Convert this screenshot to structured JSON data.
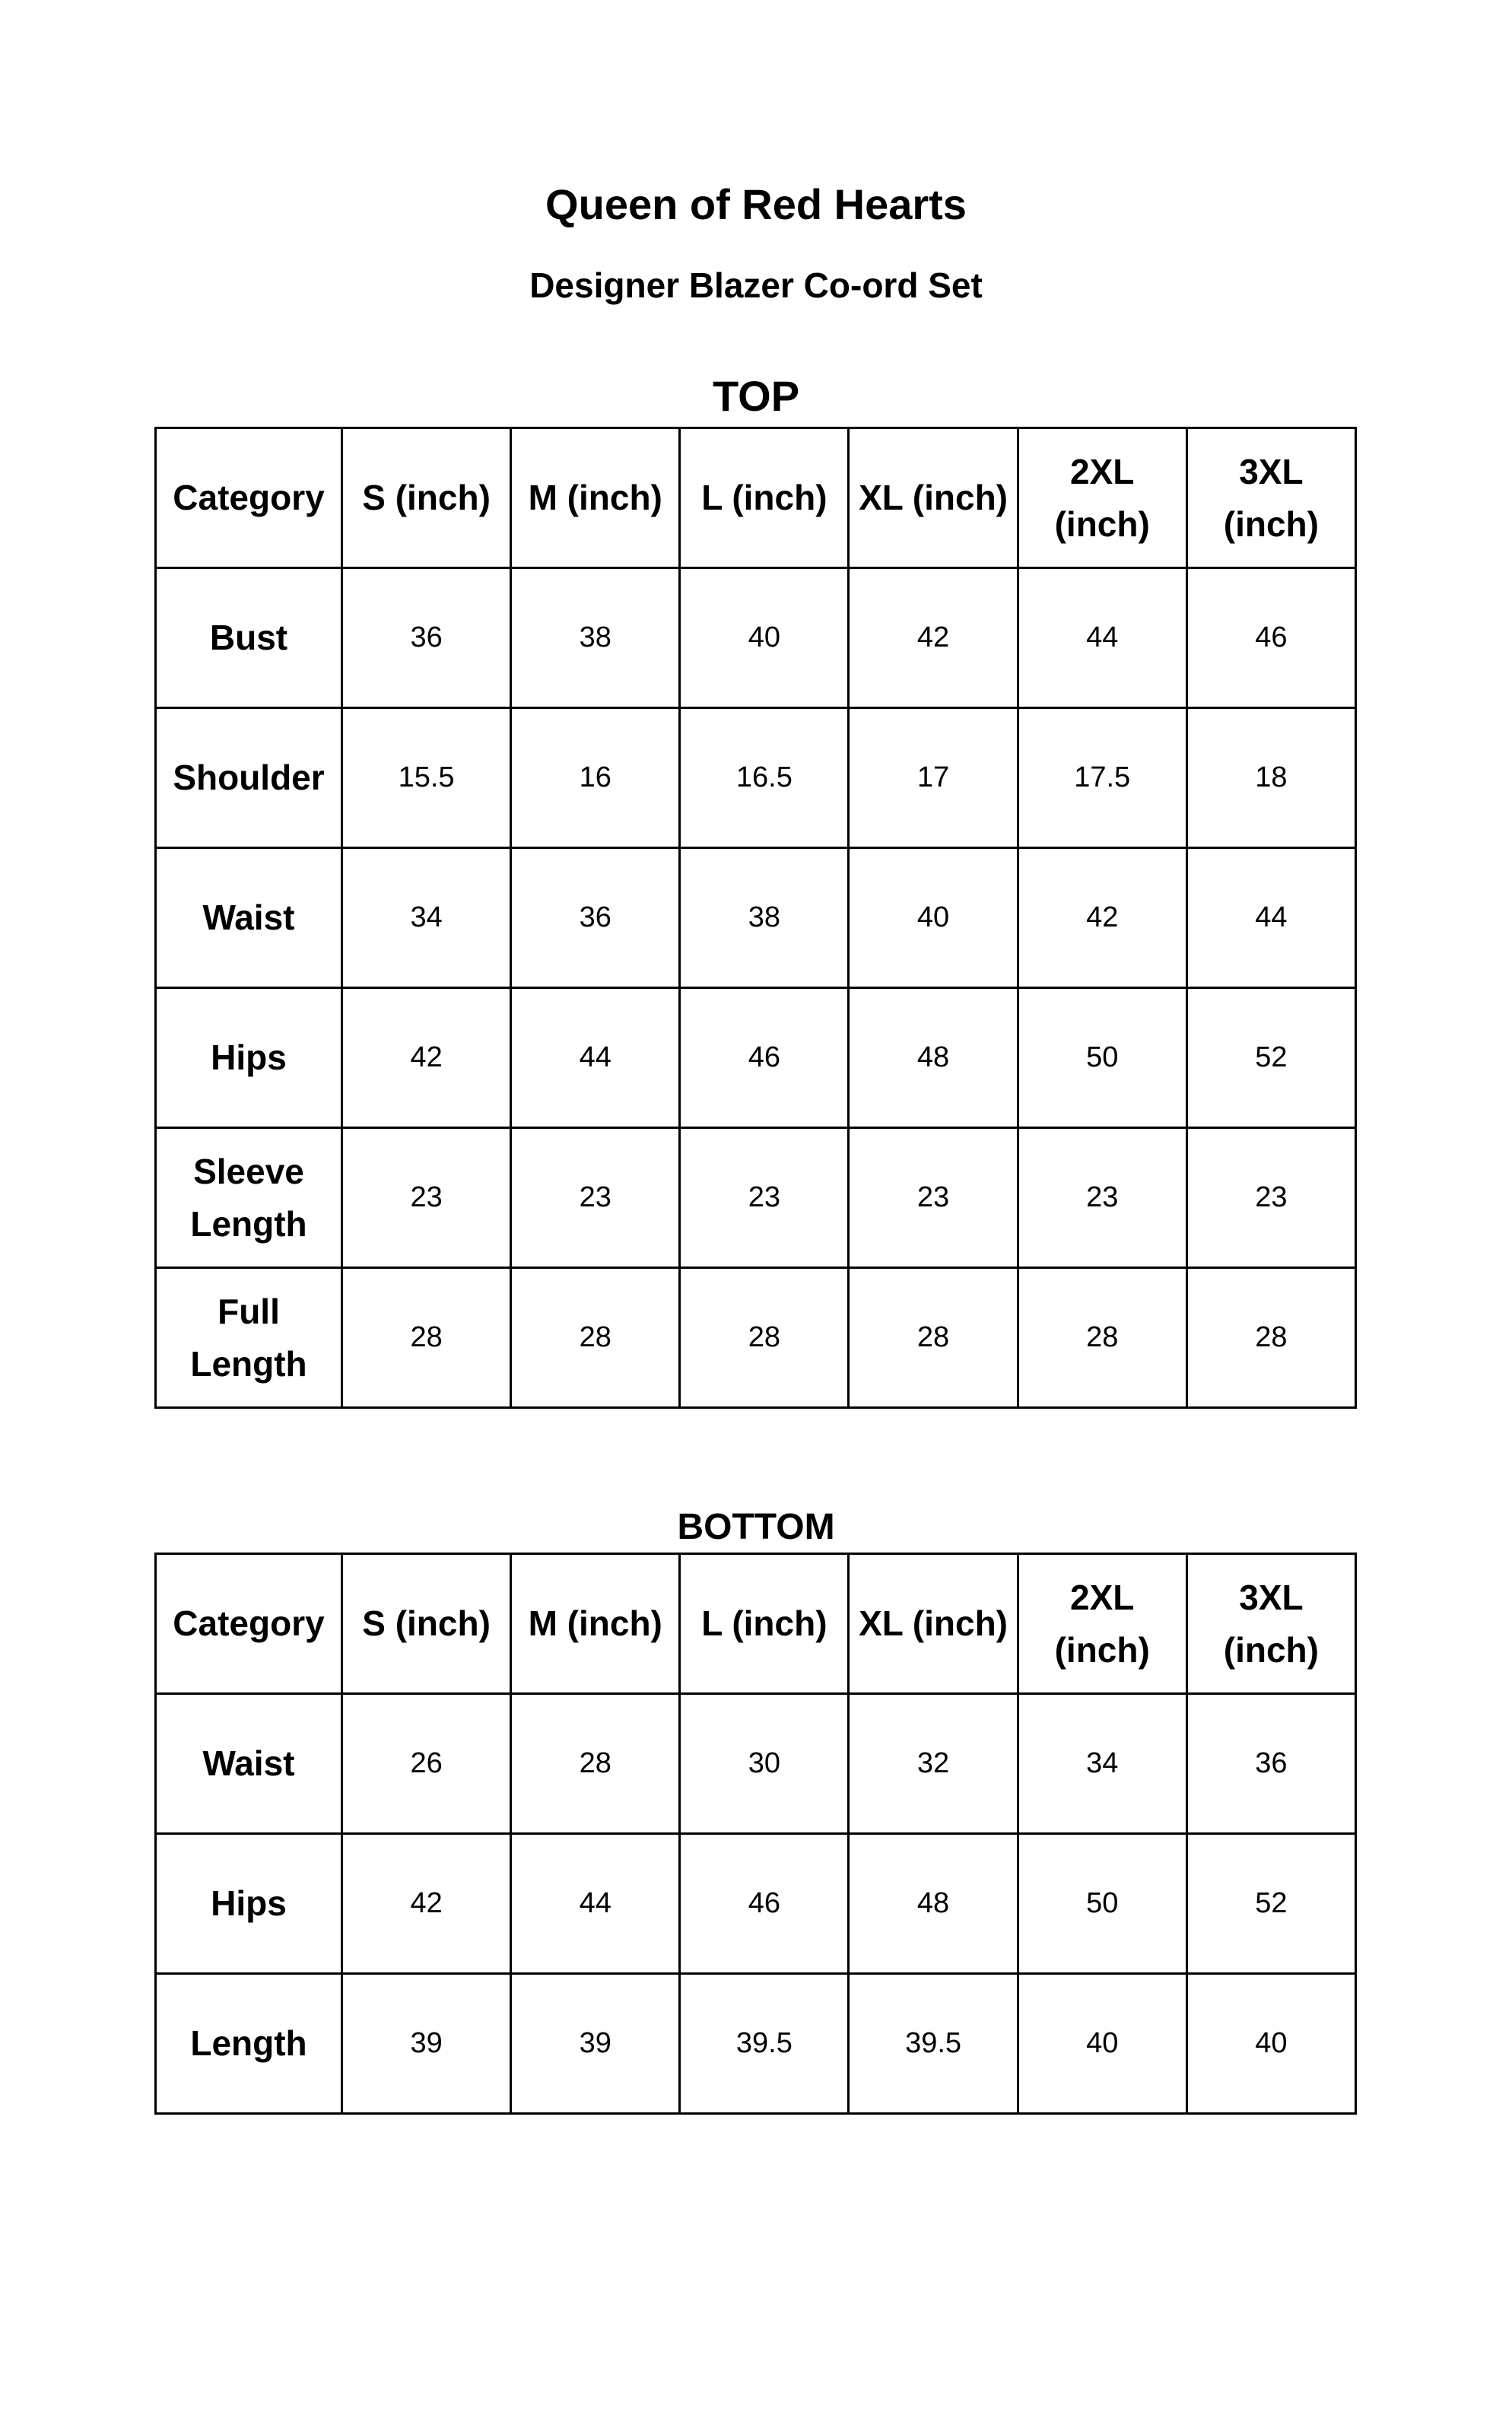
{
  "title": "Queen of Red Hearts",
  "subtitle": "Designer Blazer Co-ord Set",
  "top": {
    "label": "TOP",
    "headers": [
      "Category",
      "S (inch)",
      "M (inch)",
      "L (inch)",
      "XL (inch)",
      "2XL (inch)",
      "3XL (inch)"
    ],
    "rows": [
      {
        "category": "Bust",
        "values": [
          "36",
          "38",
          "40",
          "42",
          "44",
          "46"
        ]
      },
      {
        "category": "Shoulder",
        "values": [
          "15.5",
          "16",
          "16.5",
          "17",
          "17.5",
          "18"
        ]
      },
      {
        "category": "Waist",
        "values": [
          "34",
          "36",
          "38",
          "40",
          "42",
          "44"
        ]
      },
      {
        "category": "Hips",
        "values": [
          "42",
          "44",
          "46",
          "48",
          "50",
          "52"
        ]
      },
      {
        "category": "Sleeve Length",
        "values": [
          "23",
          "23",
          "23",
          "23",
          "23",
          "23"
        ]
      },
      {
        "category": "Full Length",
        "values": [
          "28",
          "28",
          "28",
          "28",
          "28",
          "28"
        ]
      }
    ]
  },
  "bottom": {
    "label": "BOTTOM",
    "headers": [
      "Category",
      "S (inch)",
      "M (inch)",
      "L (inch)",
      "XL (inch)",
      "2XL (inch)",
      "3XL (inch)"
    ],
    "rows": [
      {
        "category": "Waist",
        "values": [
          "26",
          "28",
          "30",
          "32",
          "34",
          "36"
        ]
      },
      {
        "category": "Hips",
        "values": [
          "42",
          "44",
          "46",
          "48",
          "50",
          "52"
        ]
      },
      {
        "category": "Length",
        "values": [
          "39",
          "39",
          "39.5",
          "39.5",
          "40",
          "40"
        ]
      }
    ]
  }
}
